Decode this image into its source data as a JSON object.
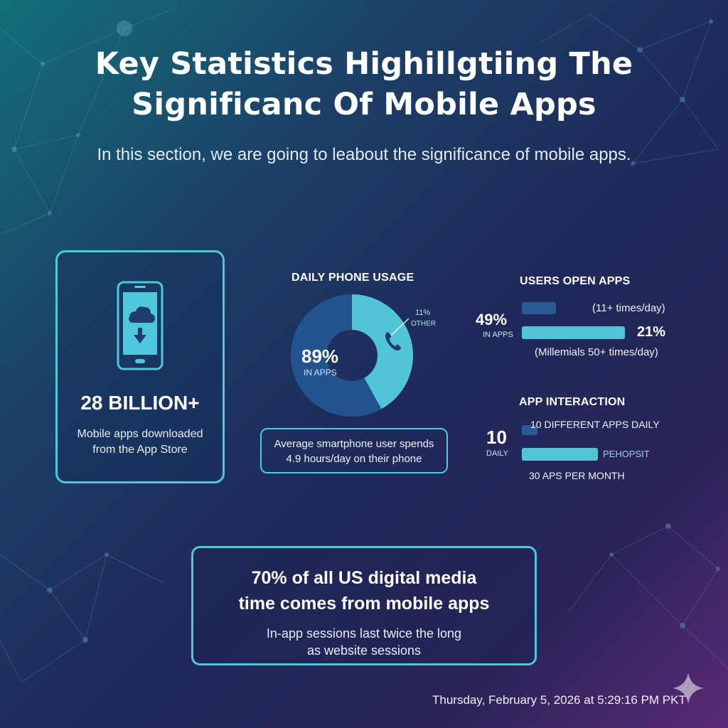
{
  "title": {
    "line1": "Key Statistics Highillgtiing The",
    "line2": "Significanc Of Mobile Apps"
  },
  "subtitle": "In this section, we are going to leabout the significance of mobile apps.",
  "downloads_card": {
    "icon": "phone-cloud-download-icon",
    "stat": "28 BILLION+",
    "line1": "Mobile apps downloaded",
    "line2": "from the App Store"
  },
  "daily_usage": {
    "title": "DAILY PHONE USAGE",
    "in_apps_value": "89%",
    "in_apps_label": "IN APPS",
    "other_value": "11%",
    "other_label": "OTHER",
    "icon": "phone-handset-icon",
    "note_line1": "Average smartphone user spends",
    "note_line2": "4.9 hours/day on their phone"
  },
  "users_open_apps": {
    "title": "USERS OPEN APPS",
    "big_value": "49%",
    "big_label": "IN APPS",
    "bar1_note": "(11+ times/day)",
    "bar2_value": "21%",
    "bar2_note": "(Millemials 50+ times/day)"
  },
  "app_interaction": {
    "title": "APP INTERACTION",
    "big_value": "10",
    "big_label": "DAILY",
    "bar1_label": "10 DIFFERENT APPS DAILY",
    "bar2_label": "PEHOPSIT",
    "bar3_label": "30 APS PER MONTH"
  },
  "highlight": {
    "line1": "70% of all US digital media",
    "line2": "time comes from mobile apps",
    "sub1": "In-app sessions last twice the long",
    "sub2": "as website sessions"
  },
  "timestamp": "Thursday, February 5, 2026 at 5:29:16 PM PKT",
  "colors": {
    "accent": "#4fc7dc",
    "donut_dark": "#21548f",
    "donut_light": "#52c4d8",
    "bar_dark": "#2a5b95"
  },
  "chart_data": [
    {
      "type": "pie",
      "title": "DAILY PHONE USAGE",
      "categories": [
        "IN APPS",
        "OTHER"
      ],
      "values": [
        89,
        11
      ],
      "unit": "%"
    },
    {
      "type": "bar",
      "title": "USERS OPEN APPS",
      "categories": [
        "(11+ times/day)",
        "(Millemials 50+ times/day)"
      ],
      "values": [
        49,
        21
      ],
      "unit": "%"
    },
    {
      "type": "bar",
      "title": "APP INTERACTION",
      "categories": [
        "10 DIFFERENT APPS DAILY",
        "PEHOPSIT"
      ],
      "values": [
        10,
        30
      ]
    }
  ]
}
